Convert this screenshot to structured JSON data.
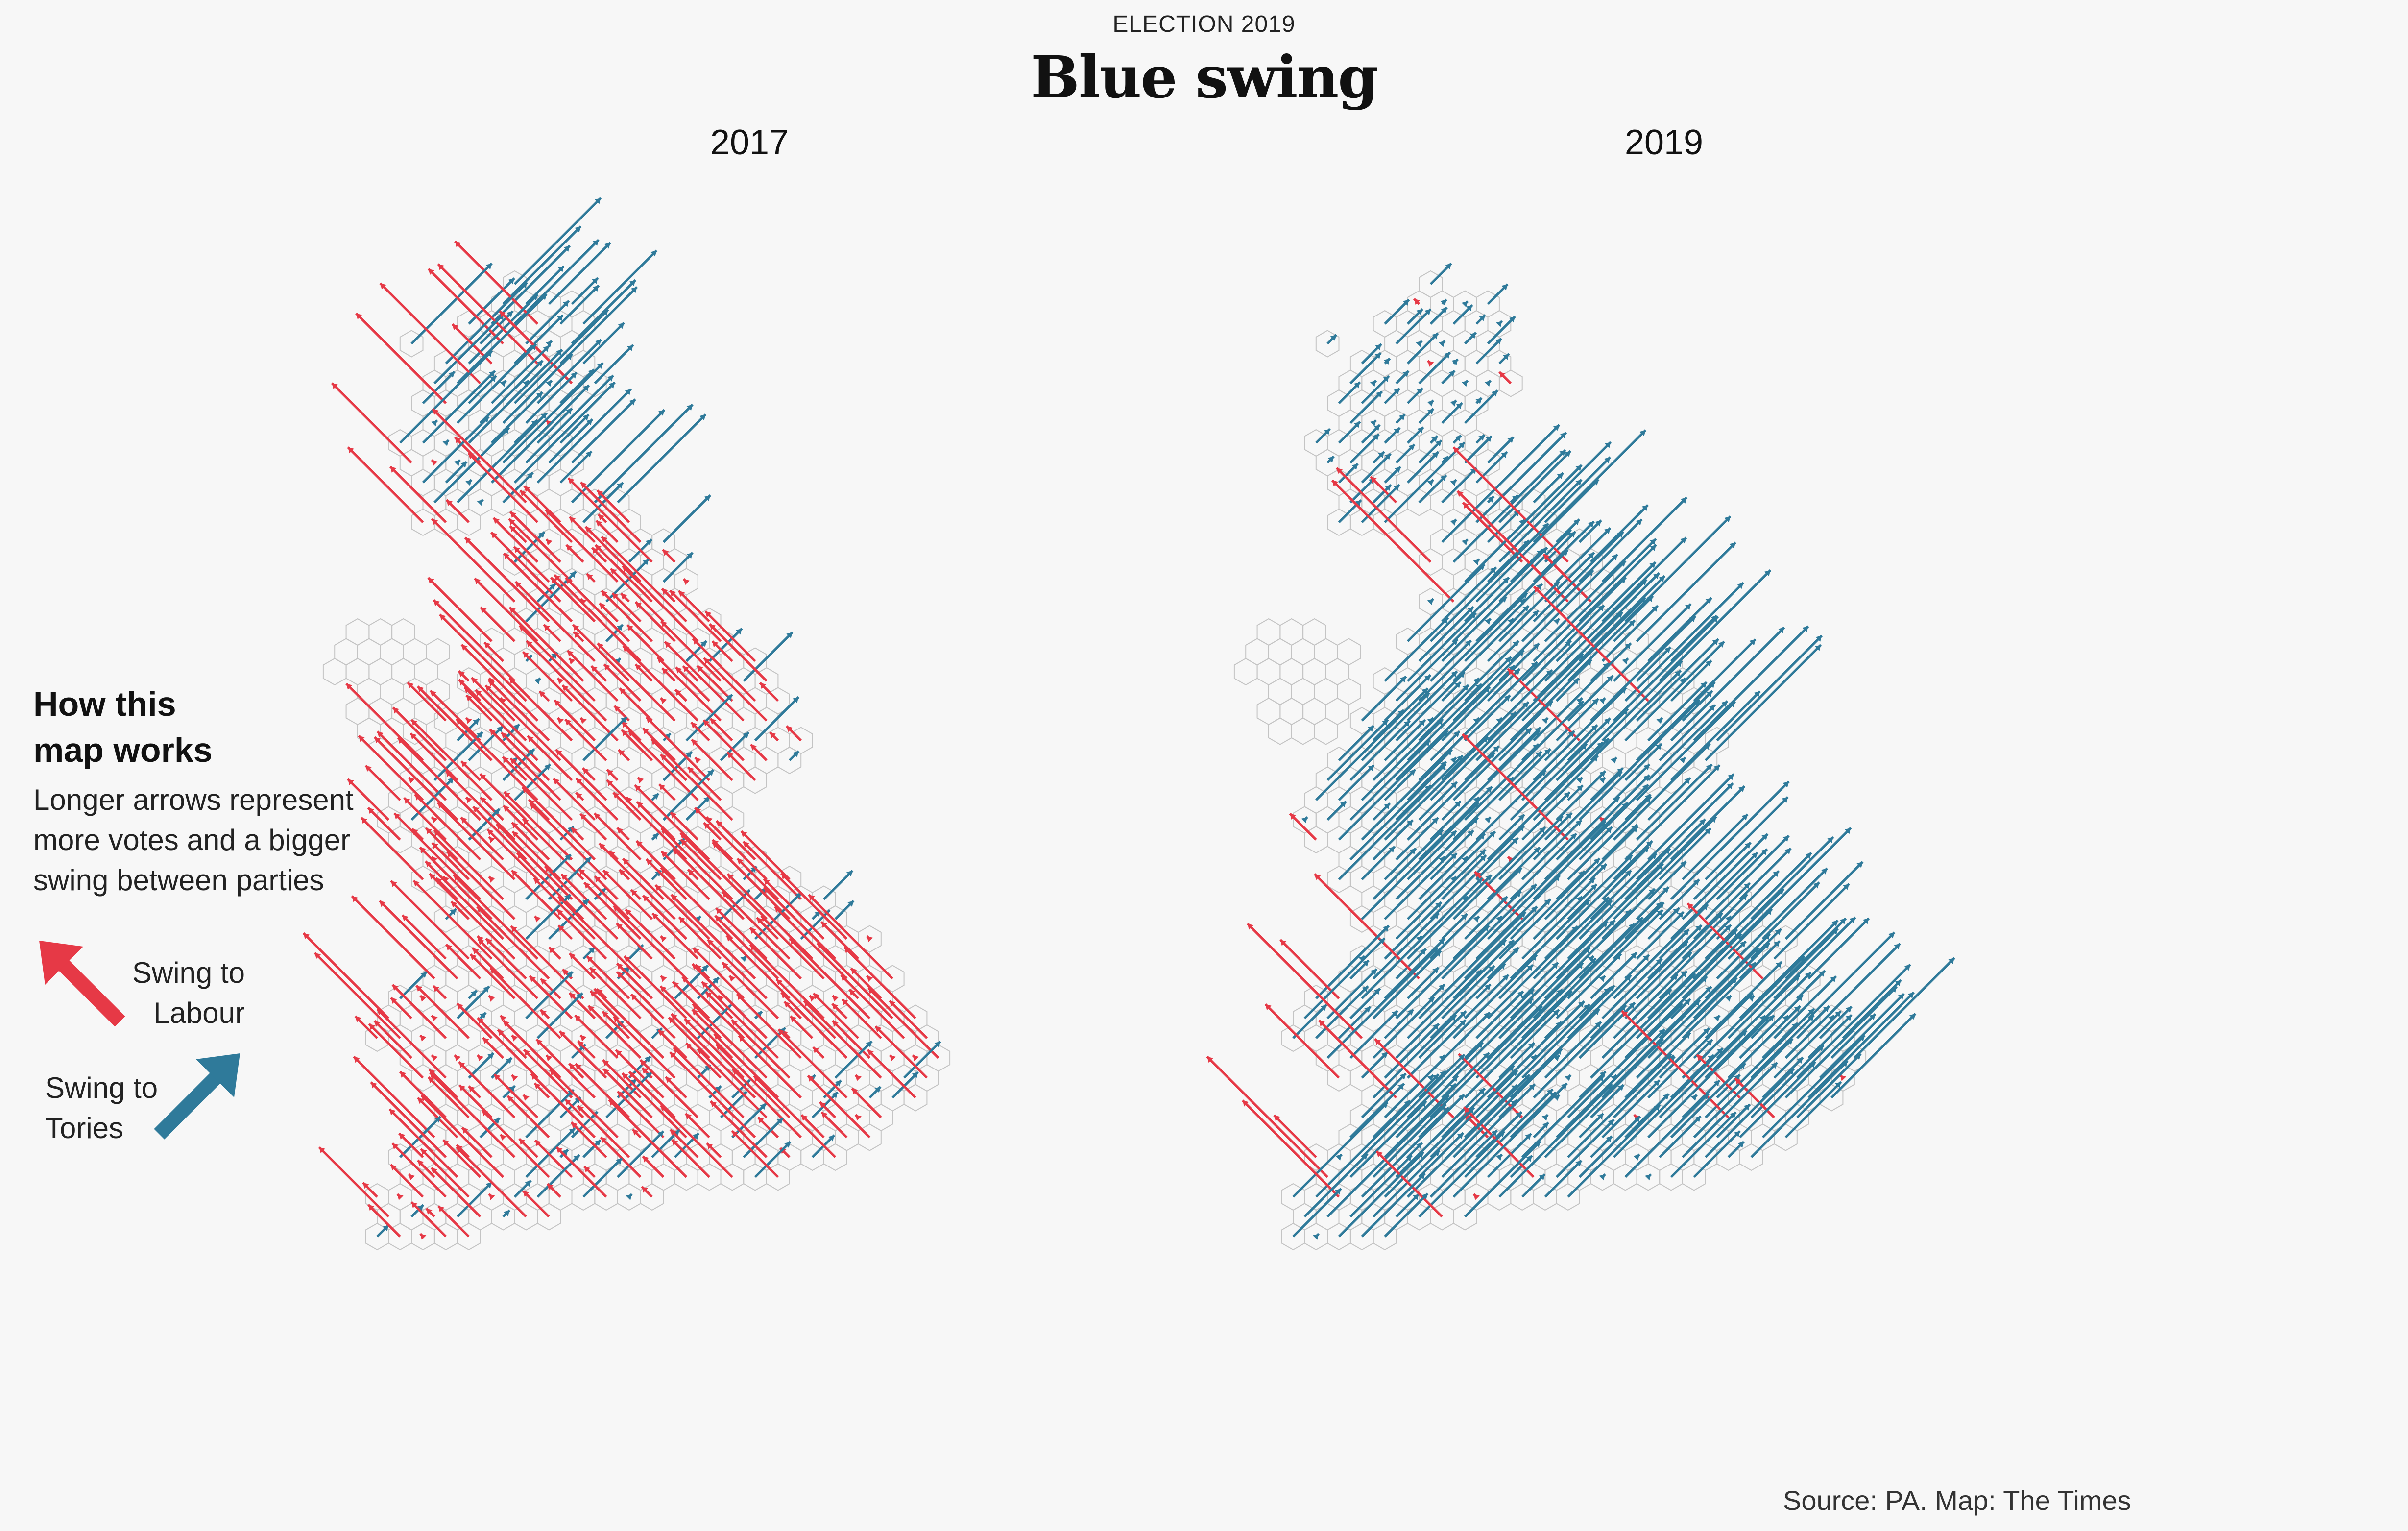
{
  "header": {
    "kicker": "ELECTION 2019",
    "title": "Blue swing"
  },
  "maps": [
    {
      "year": "2017",
      "dominant_swing": "Labour"
    },
    {
      "year": "2019",
      "dominant_swing": "Conservative"
    }
  ],
  "legend": {
    "heading": "How this\nmap works",
    "body": "Longer arrows represent more votes and a bigger swing between parties",
    "labour_label": "Swing to\nLabour",
    "tory_label": "Swing to\nTories",
    "labour_icon": "arrow-up-left-icon",
    "tory_icon": "arrow-up-right-icon"
  },
  "colors": {
    "labour": "#e63946",
    "conservative": "#2f7a9a",
    "hex_outline": "#c4c4c4",
    "background": "#f7f7f7"
  },
  "source": "Source: PA. Map: The Times"
}
